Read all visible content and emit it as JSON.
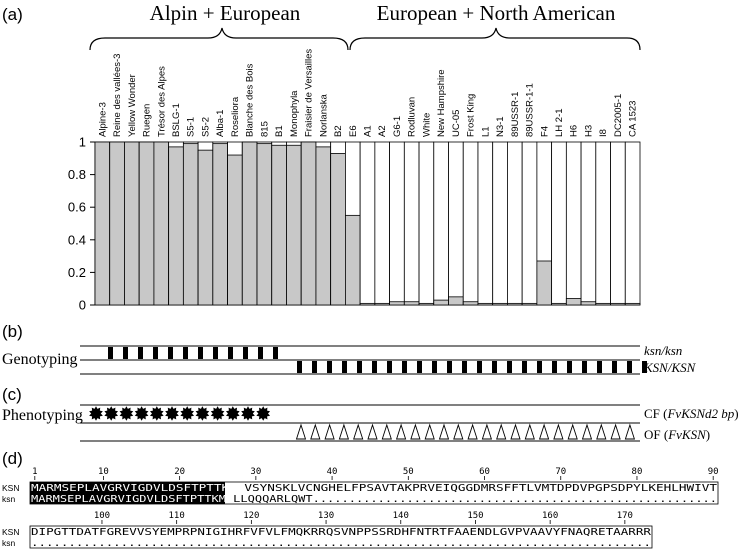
{
  "panels": {
    "a": "(a)",
    "b": "(b)",
    "c": "(c)",
    "d": "(d)"
  },
  "groups": {
    "alpin": "Alpin + European",
    "european": "European + North American"
  },
  "chart_data": {
    "type": "bar",
    "title": "",
    "xlabel": "",
    "ylabel": "",
    "ylim": [
      0,
      1
    ],
    "yticks": [
      0,
      0.2,
      0.4,
      0.6,
      0.8,
      1
    ],
    "stacked": true,
    "colors": {
      "filled": "#c8c8c8",
      "empty": "#ffffff",
      "outline": "#000000"
    },
    "categories": [
      "Alpine-3",
      "Reine des vallées-3",
      "Yellow Wonder",
      "Ruegen",
      "Trésor des Alpes",
      "BSLG-1",
      "S5-1",
      "S5-2",
      "Alba-1",
      "Roseliora",
      "Blanche des Bois",
      "815",
      "B1",
      "Monophyla",
      "Fraisier de Versailles",
      "Norlanska",
      "B2",
      "E6",
      "A1",
      "A2",
      "G6-1",
      "Rodluvan",
      "White",
      "New Hampshire",
      "UC-05",
      "Frost King",
      "L1",
      "N3-1",
      "89USSR-1",
      "89USSR-1-1",
      "F4",
      "LH 2-1",
      "H6",
      "H3",
      "I8",
      "DC2005-1",
      "CA 1523"
    ],
    "values": [
      1,
      1,
      1,
      1,
      1,
      0.97,
      0.99,
      0.95,
      0.99,
      0.92,
      1,
      0.99,
      0.98,
      0.98,
      1,
      0.97,
      0.93,
      0.55,
      0.01,
      0.01,
      0.02,
      0.02,
      0.01,
      0.03,
      0.05,
      0.02,
      0.01,
      0.01,
      0.01,
      0.01,
      0.27,
      0.01,
      0.04,
      0.02,
      0.01,
      0.01,
      0.01
    ]
  },
  "genotyping": {
    "label": "Genotyping",
    "row1": "ksn/ksn",
    "row2": "KSN/KSN",
    "row1_count": 12,
    "row2_count": 24
  },
  "phenotyping": {
    "label": "Phenotyping",
    "row1_prefix": "CF (",
    "row1_italic": "FvKSNd2 bp",
    "row1_suffix": ")",
    "row2_prefix": "OF (",
    "row2_italic": "FvKSN",
    "row2_suffix": ")",
    "row1_count": 12,
    "row2_count": 24
  },
  "alignment": {
    "ruler1": [
      "1",
      "10",
      "20",
      "30",
      "40",
      "50",
      "60",
      "70",
      "80",
      "90"
    ],
    "ruler2": [
      "100",
      "110",
      "120",
      "130",
      "140",
      "150",
      "160",
      "170"
    ],
    "block1": {
      "label_top": "KSN",
      "label_bottom": "ksn",
      "top_highlight": "MARMSEPLAVGRVIGDVLDSFTPTTKMI",
      "top_rest": "VSYNSKLVCNGHELFPSAVTAKPRVEIQGGDMRSFFTLVMTDPDVPGPSDPYLKEHLHWIVT",
      "bottom_highlight": "MARMSEPLAVGRVIGDVLDSFTPTTKMI",
      "bottom_rest": "LLQQQARLQWT........................................................"
    },
    "block2": {
      "label_top": "KSN",
      "label_bottom": "ksn",
      "top": "DIPGTTDATFGREVVSYEMPRPNIGIHRFVFVLFMQKRRQSVNPPSSRDHFNTRTFAAENDLGVPVAAVYFNAQRETAARRR",
      "bottom": "..................................................................................."
    }
  }
}
